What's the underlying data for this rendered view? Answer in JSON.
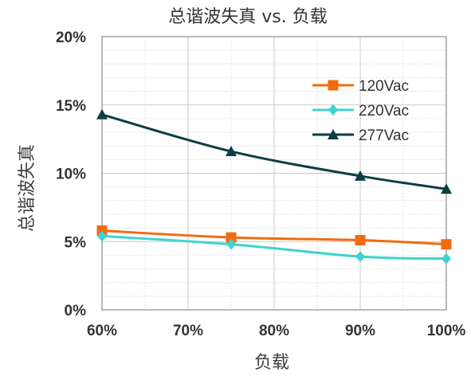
{
  "chart_data": {
    "type": "line",
    "title": "总谐波失真 vs. 负载",
    "xlabel": "负载",
    "ylabel": "总谐波失真",
    "x": [
      0.6,
      0.75,
      0.9,
      1.0
    ],
    "x_ticks": [
      "60%",
      "70%",
      "80%",
      "90%",
      "100%"
    ],
    "x_tick_values": [
      0.6,
      0.7,
      0.8,
      0.9,
      1.0
    ],
    "xlim": [
      0.6,
      1.0
    ],
    "y_ticks": [
      "0%",
      "5%",
      "10%",
      "15%",
      "20%"
    ],
    "y_tick_values": [
      0,
      5,
      10,
      15,
      20
    ],
    "ylim": [
      0,
      20
    ],
    "grid": true,
    "legend_position": "top-right",
    "series": [
      {
        "name": "120Vac",
        "values": [
          5.8,
          5.3,
          5.1,
          4.8
        ],
        "color": "#f26b0f",
        "marker": "square"
      },
      {
        "name": "220Vac",
        "values": [
          5.4,
          4.8,
          3.9,
          3.75
        ],
        "color": "#3fd3cf",
        "marker": "diamond"
      },
      {
        "name": "277Vac",
        "values": [
          14.3,
          11.6,
          9.8,
          8.85
        ],
        "color": "#0b3e45",
        "marker": "triangle"
      }
    ]
  }
}
